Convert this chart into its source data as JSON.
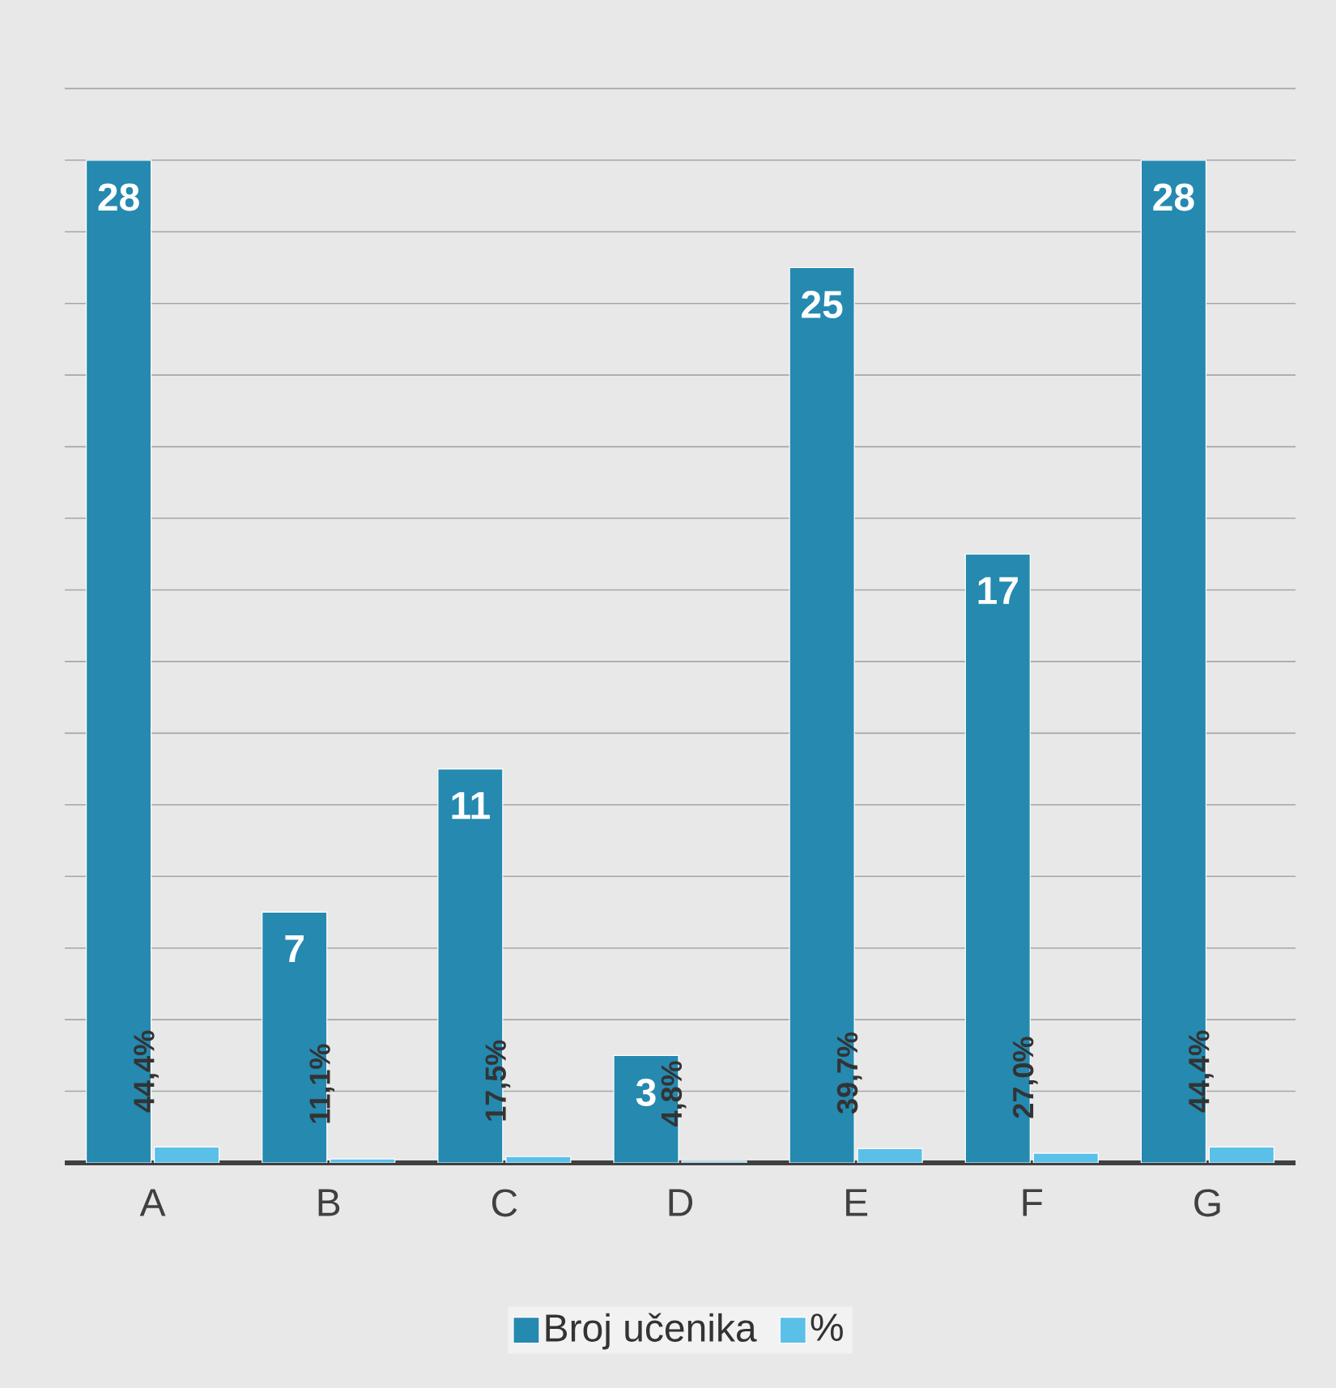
{
  "chart_data": {
    "type": "bar",
    "categories": [
      "A",
      "B",
      "C",
      "D",
      "E",
      "F",
      "G"
    ],
    "series": [
      {
        "name": "Broj učenika",
        "color": "#2589b0",
        "values": [
          28,
          7,
          11,
          3,
          25,
          17,
          28
        ]
      },
      {
        "name": "%",
        "color": "#5bc0e8",
        "values": [
          0.444,
          0.111,
          0.175,
          0.048,
          0.397,
          0.27,
          0.444
        ],
        "value_labels": [
          "44,4%",
          "11,1%",
          "17,5%",
          "4,8%",
          "39,7%",
          "27,0%",
          "44,4%"
        ]
      }
    ],
    "tick_labels": "x",
    "grid": "y",
    "legend": "bottom",
    "data_labels": true
  }
}
